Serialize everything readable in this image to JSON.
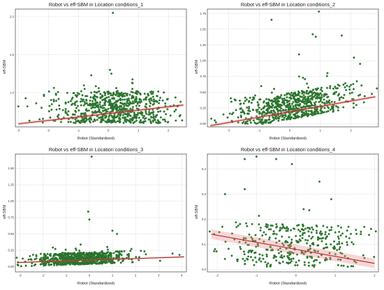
{
  "colors": {
    "points": "#2e7d32",
    "points_edge": "#1e5c1e",
    "regression": "#b22222",
    "ci_band": "#e88a8a",
    "grid": "#bdbdbd",
    "frame": "#222222"
  },
  "chart_data": [
    {
      "type": "scatter",
      "title": "Robot vs eff-SBM in Location conditions_1",
      "xlabel": "Robot (Standardized)",
      "ylabel": "eff-SBM",
      "xlim": [
        -3.1,
        2.6
      ],
      "ylim": [
        0.55,
        2.1
      ],
      "xticks": [
        -3,
        -2,
        -1,
        0,
        1,
        2
      ],
      "yticks": [
        0.5,
        1.0,
        1.5,
        2.0
      ],
      "ytick_labels": [
        "0.5",
        "1.0",
        "1.5",
        "2.0"
      ],
      "grid": true,
      "n_points": 720,
      "x_mean": 0.2,
      "x_sd": 0.95,
      "y_base": 0.6,
      "y_spread": [
        0.22,
        0.2
      ],
      "outliers": [
        {
          "x": 0.15,
          "y": 2.05
        },
        {
          "x": 0.05,
          "y": 1.3
        },
        {
          "x": 0.1,
          "y": 1.25
        },
        {
          "x": 0.8,
          "y": 1.05
        },
        {
          "x": 0.9,
          "y": 1.0
        },
        {
          "x": -2.7,
          "y": 0.82
        },
        {
          "x": 2.3,
          "y": 0.82
        },
        {
          "x": -3.0,
          "y": 0.82
        }
      ],
      "regression": {
        "intercept": 0.725,
        "slope": 0.045,
        "ci": 0.012
      }
    },
    {
      "type": "scatter",
      "title": "Robot vs eff-SBM in Location conditions_2",
      "xlabel": "Robot (Standardized)",
      "ylabel": "eff-SBM",
      "xlim": [
        -2.7,
        2.9
      ],
      "ylim": [
        -0.05,
        1.82
      ],
      "xticks": [
        -2,
        -1,
        0,
        1,
        2
      ],
      "yticks": [
        0.0,
        0.25,
        0.5,
        0.75,
        1.0,
        1.25,
        1.5,
        1.75
      ],
      "ytick_labels": [
        "0.00",
        "0.25",
        "0.50",
        "0.75",
        "1.00",
        "1.25",
        "1.50",
        "1.75"
      ],
      "grid": true,
      "n_points": 720,
      "x_mean": 0.1,
      "x_sd": 0.95,
      "y_base": 0.0,
      "y_spread": [
        0.12,
        0.3
      ],
      "outliers": [
        {
          "x": 0.95,
          "y": 1.78
        },
        {
          "x": -0.6,
          "y": 1.65
        },
        {
          "x": 0.75,
          "y": 1.42
        },
        {
          "x": 0.85,
          "y": 1.38
        },
        {
          "x": 1.7,
          "y": 1.4
        },
        {
          "x": 2.1,
          "y": 1.05
        },
        {
          "x": 2.3,
          "y": 0.95
        },
        {
          "x": 0.3,
          "y": 1.1
        }
      ],
      "regression": {
        "intercept": 0.19,
        "slope": 0.085,
        "ci": 0.015
      }
    },
    {
      "type": "scatter",
      "title": "Robot vs eff-SBM in Location conditions_3",
      "xlabel": "Robot (Standardized)",
      "ylabel": "eff-SBM",
      "xlim": [
        -3.2,
        4.2
      ],
      "ylim": [
        -0.08,
        1.72
      ],
      "xticks": [
        -3,
        -2,
        -1,
        0,
        1,
        2,
        3,
        4
      ],
      "yticks": [
        0.0,
        0.25,
        0.5,
        0.75,
        1.0,
        1.25,
        1.5
      ],
      "ytick_labels": [
        "0.00",
        "0.25",
        "0.50",
        "0.75",
        "1.00",
        "1.25",
        "1.50"
      ],
      "grid": true,
      "n_points": 760,
      "x_mean": -0.4,
      "x_sd": 1.0,
      "y_base": 0.0,
      "y_spread": [
        0.06,
        0.12
      ],
      "outliers": [
        {
          "x": 0.1,
          "y": 1.68
        },
        {
          "x": -0.05,
          "y": 0.84
        },
        {
          "x": 0.0,
          "y": 0.72
        },
        {
          "x": 1.0,
          "y": 0.55
        },
        {
          "x": 1.2,
          "y": 0.5
        },
        {
          "x": 3.6,
          "y": 0.2
        },
        {
          "x": 3.9,
          "y": 0.18
        }
      ],
      "regression": {
        "intercept": 0.1,
        "slope": 0.012,
        "ci": 0.008
      }
    },
    {
      "type": "scatter",
      "title": "Robot vs eff-SBM in Location conditions_4",
      "xlabel": "Robot (Standardized)",
      "ylabel": "eff-SBM",
      "xlim": [
        -2.25,
        2.1
      ],
      "ylim": [
        -0.01,
        0.46
      ],
      "xticks": [
        -2,
        -1,
        0,
        1,
        2
      ],
      "yticks": [
        0.0,
        0.1,
        0.2,
        0.3,
        0.4
      ],
      "ytick_labels": [
        "0.0",
        "0.1",
        "0.2",
        "0.3",
        "0.4"
      ],
      "grid": true,
      "n_points": 380,
      "x_mean": 0.0,
      "x_sd": 1.0,
      "y_base": 0.01,
      "y_spread": [
        0.1,
        0.07
      ],
      "outliers": [
        {
          "x": -1.0,
          "y": 0.45
        },
        {
          "x": -0.5,
          "y": 0.44
        },
        {
          "x": -1.3,
          "y": 0.44
        },
        {
          "x": -0.1,
          "y": 0.42
        },
        {
          "x": -1.8,
          "y": 0.3
        },
        {
          "x": 0.6,
          "y": 0.35
        },
        {
          "x": -1.3,
          "y": 0.32
        },
        {
          "x": 0.9,
          "y": 0.28
        }
      ],
      "regression": {
        "intercept": 0.08,
        "slope": -0.028,
        "ci": 0.012
      }
    }
  ]
}
